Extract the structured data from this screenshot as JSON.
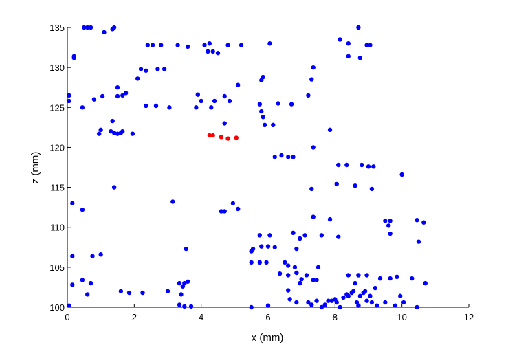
{
  "chart_data": {
    "type": "scatter",
    "title": "",
    "xlabel": "x (mm)",
    "ylabel": "z (mm)",
    "xlim": [
      0,
      12
    ],
    "ylim": [
      100,
      135
    ],
    "xticks": [
      0,
      2,
      4,
      6,
      8,
      10,
      12
    ],
    "yticks": [
      100,
      105,
      110,
      115,
      120,
      125,
      130,
      135
    ],
    "grid": false,
    "legend": "none",
    "series": [
      {
        "color": "#0000ff",
        "points": [
          [
            0.5,
            135
          ],
          [
            0.6,
            135
          ],
          [
            0.7,
            135
          ],
          [
            1.1,
            134.4
          ],
          [
            1.35,
            134.8
          ],
          [
            1.4,
            135
          ],
          [
            0.2,
            131.4
          ],
          [
            0.2,
            131.2
          ],
          [
            2.4,
            132.8
          ],
          [
            2.55,
            132.8
          ],
          [
            2.8,
            132.8
          ],
          [
            3.3,
            132.8
          ],
          [
            3.6,
            132.6
          ],
          [
            4.1,
            132.8
          ],
          [
            4.25,
            133
          ],
          [
            4.2,
            132
          ],
          [
            4.35,
            132
          ],
          [
            4.5,
            131.8
          ],
          [
            4.8,
            132.8
          ],
          [
            5.2,
            132.8
          ],
          [
            6.05,
            133
          ],
          [
            8.15,
            133.5
          ],
          [
            8.4,
            133
          ],
          [
            8.7,
            135
          ],
          [
            8.95,
            132.8
          ],
          [
            9.05,
            132.8
          ],
          [
            8.75,
            131.2
          ],
          [
            8.4,
            131.4
          ],
          [
            2.2,
            129.8
          ],
          [
            2.35,
            129.6
          ],
          [
            2.7,
            129.8
          ],
          [
            2.9,
            129.8
          ],
          [
            7.35,
            130
          ],
          [
            5.85,
            128.8
          ],
          [
            5.8,
            128.4
          ],
          [
            7.3,
            128.5
          ],
          [
            5.1,
            127.8
          ],
          [
            2.1,
            128.6
          ],
          [
            1.5,
            127.5
          ],
          [
            1.75,
            126.8
          ],
          [
            0.05,
            126.5
          ],
          [
            0.05,
            125.8
          ],
          [
            0.45,
            125
          ],
          [
            0.8,
            126
          ],
          [
            1.05,
            126.4
          ],
          [
            1.5,
            126.4
          ],
          [
            1.65,
            126.5
          ],
          [
            2.35,
            125.2
          ],
          [
            2.65,
            125.2
          ],
          [
            3.05,
            125
          ],
          [
            3.9,
            126.6
          ],
          [
            4.0,
            125.8
          ],
          [
            3.85,
            125
          ],
          [
            4.3,
            125
          ],
          [
            4.4,
            125.8
          ],
          [
            4.7,
            126.4
          ],
          [
            4.85,
            125.8
          ],
          [
            5.75,
            125.4
          ],
          [
            5.8,
            124.5
          ],
          [
            6.3,
            125.5
          ],
          [
            6.7,
            125.4
          ],
          [
            7.2,
            126.5
          ],
          [
            5.85,
            123.8
          ],
          [
            5.9,
            122.8
          ],
          [
            6.15,
            122.8
          ],
          [
            4.7,
            123
          ],
          [
            1.35,
            123.3
          ],
          [
            1.0,
            122.2
          ],
          [
            0.95,
            121.7
          ],
          [
            1.3,
            122
          ],
          [
            1.4,
            121.8
          ],
          [
            1.5,
            121.7
          ],
          [
            1.6,
            121.8
          ],
          [
            1.65,
            122
          ],
          [
            1.95,
            121.7
          ],
          [
            7.35,
            120
          ],
          [
            7.85,
            122.2
          ],
          [
            6.2,
            118.8
          ],
          [
            6.4,
            119
          ],
          [
            6.6,
            118.8
          ],
          [
            6.75,
            118.8
          ],
          [
            8.1,
            117.8
          ],
          [
            8.35,
            117.8
          ],
          [
            8.8,
            117.8
          ],
          [
            9.0,
            117.6
          ],
          [
            9.15,
            117.6
          ],
          [
            10.0,
            116.6
          ],
          [
            8.05,
            115.4
          ],
          [
            8.6,
            115.2
          ],
          [
            9.1,
            114.8
          ],
          [
            7.3,
            114.8
          ],
          [
            1.4,
            115
          ],
          [
            0.15,
            113
          ],
          [
            0.45,
            112.2
          ],
          [
            3.15,
            113.2
          ],
          [
            4.6,
            112
          ],
          [
            4.7,
            112
          ],
          [
            4.95,
            113
          ],
          [
            5.1,
            112.3
          ],
          [
            7.35,
            111.3
          ],
          [
            7.85,
            111
          ],
          [
            9.5,
            110.8
          ],
          [
            9.65,
            110.8
          ],
          [
            9.6,
            110.2
          ],
          [
            10.45,
            110.9
          ],
          [
            10.65,
            110.6
          ],
          [
            9.65,
            109.2
          ],
          [
            10.5,
            108.2
          ],
          [
            5.75,
            109
          ],
          [
            6.05,
            109
          ],
          [
            6.75,
            109.3
          ],
          [
            6.95,
            108.6
          ],
          [
            7.1,
            109
          ],
          [
            7.6,
            109
          ],
          [
            8.1,
            108.8
          ],
          [
            5.55,
            107.3
          ],
          [
            5.8,
            107.6
          ],
          [
            6.0,
            107.6
          ],
          [
            6.2,
            107.5
          ],
          [
            3.55,
            107.3
          ],
          [
            6.85,
            107.3
          ],
          [
            5.5,
            107
          ],
          [
            0.75,
            106.4
          ],
          [
            1.0,
            106.6
          ],
          [
            0.15,
            106.4
          ],
          [
            5.5,
            105.6
          ],
          [
            5.75,
            105.6
          ],
          [
            5.95,
            105.6
          ],
          [
            6.5,
            105.6
          ],
          [
            6.6,
            105.2
          ],
          [
            6.8,
            105
          ],
          [
            7.5,
            105
          ],
          [
            6.35,
            104.2
          ],
          [
            6.6,
            104
          ],
          [
            6.85,
            104.3
          ],
          [
            7.0,
            103.5
          ],
          [
            7.15,
            104
          ],
          [
            7.35,
            103.4
          ],
          [
            7.45,
            103.4
          ],
          [
            6.95,
            103
          ],
          [
            0.45,
            103.4
          ],
          [
            0.7,
            103
          ],
          [
            0.15,
            102.8
          ],
          [
            3.35,
            103
          ],
          [
            3.5,
            103
          ],
          [
            3.6,
            103.2
          ],
          [
            3.45,
            102.6
          ],
          [
            1.6,
            102
          ],
          [
            1.85,
            101.8
          ],
          [
            2.25,
            101.8
          ],
          [
            3.0,
            102
          ],
          [
            3.4,
            101.6
          ],
          [
            0.6,
            101.6
          ],
          [
            0.05,
            100.2
          ],
          [
            3.35,
            100.3
          ],
          [
            3.5,
            100.1
          ],
          [
            3.7,
            100.1
          ],
          [
            5.5,
            100
          ],
          [
            6.0,
            100.2
          ],
          [
            6.6,
            102.1
          ],
          [
            6.65,
            101
          ],
          [
            6.85,
            100.6
          ],
          [
            7.2,
            100.6
          ],
          [
            7.3,
            100.3
          ],
          [
            7.45,
            100.8
          ],
          [
            7.6,
            100
          ],
          [
            7.7,
            100.3
          ],
          [
            7.8,
            100.8
          ],
          [
            7.9,
            100.8
          ],
          [
            8.0,
            101
          ],
          [
            8.05,
            100.6
          ],
          [
            8.15,
            100
          ],
          [
            8.25,
            101.2
          ],
          [
            8.35,
            101.6
          ],
          [
            8.4,
            101.4
          ],
          [
            8.5,
            101.8
          ],
          [
            8.55,
            102
          ],
          [
            8.6,
            103
          ],
          [
            8.65,
            100.6
          ],
          [
            8.7,
            100.2
          ],
          [
            8.75,
            101.4
          ],
          [
            8.85,
            101.8
          ],
          [
            8.9,
            102
          ],
          [
            8.95,
            100.8
          ],
          [
            9.05,
            101.4
          ],
          [
            9.1,
            100.6
          ],
          [
            9.2,
            102.4
          ],
          [
            9.25,
            100.2
          ],
          [
            9.35,
            103.6
          ],
          [
            8.4,
            104
          ],
          [
            8.7,
            104
          ],
          [
            8.95,
            104
          ],
          [
            9.5,
            100.6
          ],
          [
            9.65,
            103.6
          ],
          [
            9.8,
            100.2
          ],
          [
            9.85,
            103.8
          ],
          [
            9.95,
            101.4
          ],
          [
            10.05,
            100.6
          ],
          [
            10.3,
            103.6
          ],
          [
            10.45,
            100
          ],
          [
            10.7,
            103
          ]
        ]
      },
      {
        "color": "#ff0000",
        "points": [
          [
            4.25,
            121.5
          ],
          [
            4.35,
            121.5
          ],
          [
            4.6,
            121.3
          ],
          [
            4.8,
            121.1
          ],
          [
            5.05,
            121.2
          ]
        ]
      }
    ]
  }
}
